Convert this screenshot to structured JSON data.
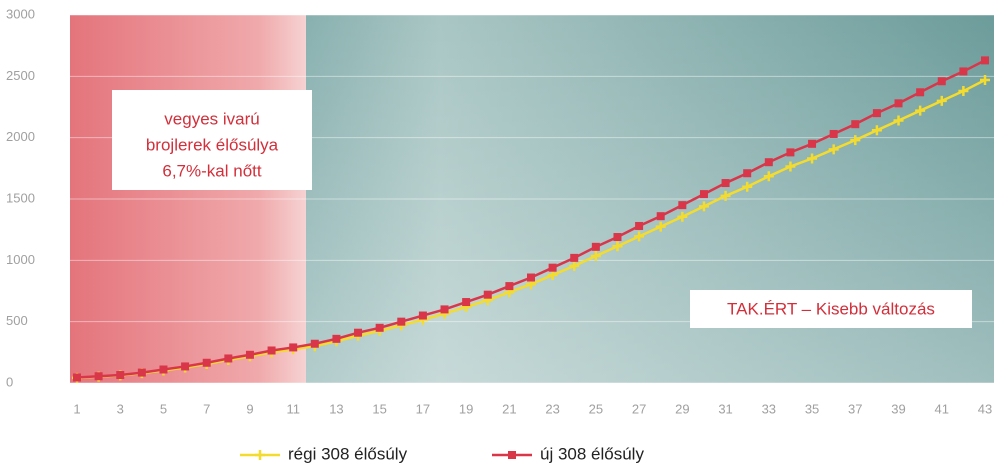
{
  "chart_data": {
    "type": "line",
    "categories": [
      1,
      null,
      3,
      null,
      5,
      null,
      7,
      null,
      9,
      null,
      11,
      null,
      13,
      null,
      15,
      null,
      17,
      null,
      19,
      null,
      21,
      null,
      23,
      null,
      25,
      null,
      27,
      null,
      29,
      null,
      31,
      null,
      33,
      null,
      35,
      null,
      37,
      null,
      39,
      null,
      41,
      null,
      43
    ],
    "series": [
      {
        "name": "régi 308 élősúly",
        "color": "#f3dc2e",
        "values": [
          42,
          52,
          62,
          80,
          102,
          126,
          155,
          188,
          218,
          250,
          275,
          300,
          340,
          385,
          425,
          470,
          515,
          565,
          620,
          675,
          740,
          805,
          880,
          955,
          1035,
          1115,
          1195,
          1275,
          1355,
          1440,
          1525,
          1600,
          1685,
          1765,
          1830,
          1905,
          1980,
          2060,
          2140,
          2220,
          2300,
          2380,
          2470
        ]
      },
      {
        "name": "új 308 élősúly",
        "color": "#d9364a",
        "values": [
          45,
          55,
          65,
          85,
          110,
          135,
          165,
          200,
          230,
          265,
          290,
          320,
          360,
          410,
          450,
          500,
          550,
          600,
          660,
          720,
          790,
          860,
          940,
          1020,
          1110,
          1190,
          1280,
          1360,
          1450,
          1540,
          1630,
          1710,
          1800,
          1880,
          1950,
          2030,
          2110,
          2200,
          2280,
          2370,
          2460,
          2540,
          2630
        ]
      }
    ],
    "ylim": [
      0,
      3000
    ],
    "yticks": [
      0,
      500,
      1000,
      1500,
      2000,
      2500,
      3000
    ],
    "grid": true,
    "annotations": [
      {
        "text": [
          "vegyes ivarú",
          "brojlerek élősúlya",
          "6,7%-kal nőtt"
        ]
      },
      {
        "text": "TAK.ÉRT – Kisebb változás"
      }
    ]
  }
}
